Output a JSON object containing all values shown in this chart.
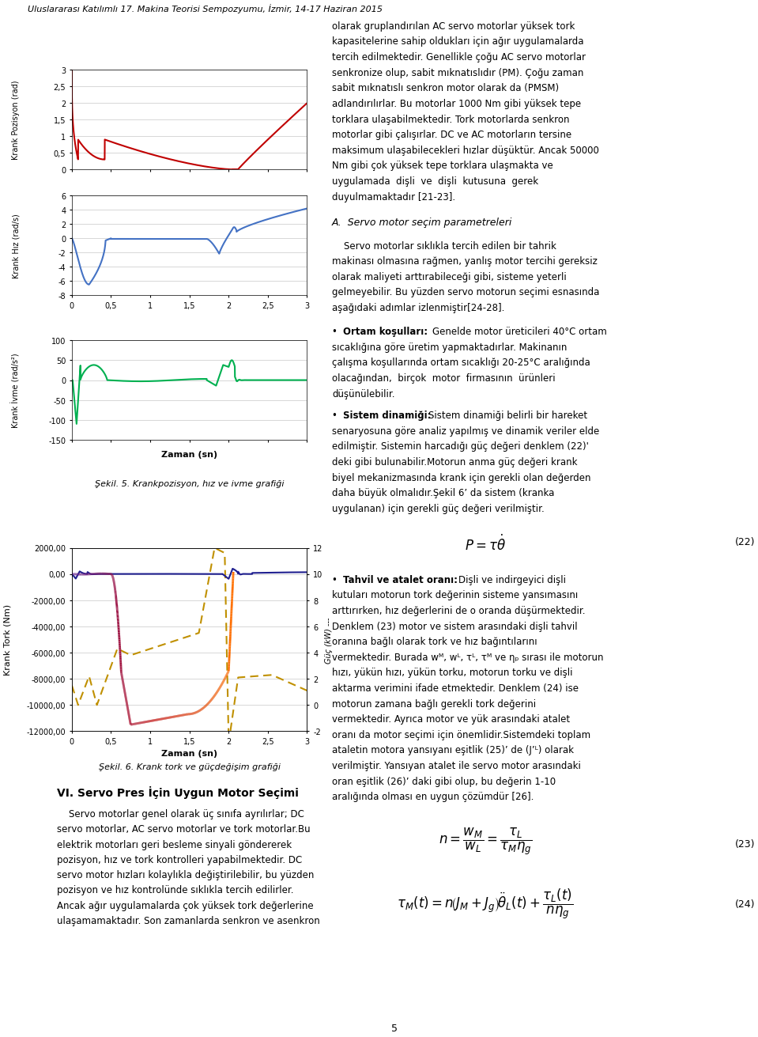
{
  "fig_width": 9.6,
  "fig_height": 13.25,
  "dpi": 100,
  "header_text": "Uluslararası Katılımlı 17. Makina Teorisi Sempozyumu, İzmir, 14-17 Haziran 2015",
  "page_number": "5",
  "chart1_ylabel1": "Krank Pozisyon (rad)",
  "chart1_ylabel2": "Krank Hız (rad/s)",
  "chart1_ylabel3": "Krank İvme (rad/s²)",
  "chart1_xlabel": "Zaman (sn)",
  "chart1_caption": "Şekil. 5. Krankpozisyon, hız ve ivme grafiği",
  "chart2_ylabel": "Krank Tork (Nm)",
  "chart2_ylabel2": "Güç (kW) ---",
  "chart2_xlabel": "Zaman (sn)",
  "chart2_caption": "Şekil. 6. Krank tork ve güçdeğişim grafiği",
  "section_title": "VI. Servo Pres İçin Uygun Motor Seçimi",
  "background_color": "#ffffff",
  "grid_color": "#c8c8c8"
}
